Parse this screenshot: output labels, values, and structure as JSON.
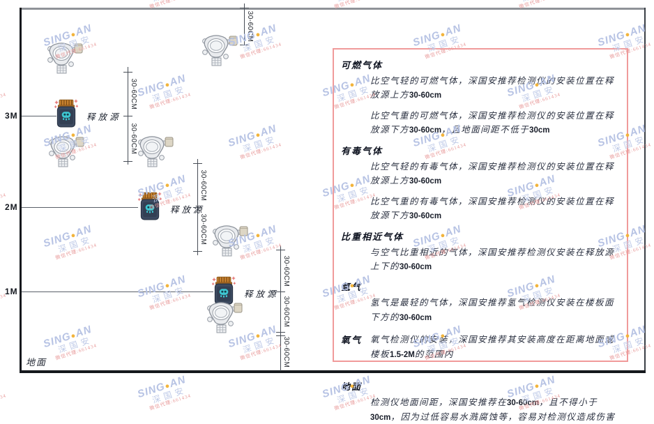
{
  "watermark": {
    "brand_front": "SING",
    "brand_dot": "●",
    "brand_back": "AN",
    "brand_cjk": "深国安",
    "agent_line": "微信代理:661434"
  },
  "diagram": {
    "level_labels": {
      "m3": "3M",
      "m2": "2M",
      "m1": "1M"
    },
    "ground_label": "地面",
    "release_source_label": "释放源",
    "dim_label": "30-60CM"
  },
  "panel": {
    "border_color": "#f09a9a",
    "sections": [
      {
        "heading": "可燃气体",
        "inline": false,
        "gap_before": false,
        "paragraphs": [
          "比空气轻的可燃气体，深国安推荐检测仪的安装位置在释放源上方30-60cm",
          "比空气重的可燃气体，深国安推荐检测仪的安装位置在释放源下方30-60cm，且地面间距不低于30cm"
        ]
      },
      {
        "heading": "有毒气体",
        "inline": false,
        "gap_before": false,
        "paragraphs": [
          "比空气轻的有毒气体，深国安推荐检测仪的安装位置在释放源上方30-60cm",
          "比空气重的有毒气体，深国安推荐检测仪的安装位置在释放源下方30-60cm"
        ]
      },
      {
        "heading": "比重相近气体",
        "inline": false,
        "gap_before": false,
        "paragraphs": [
          "与空气比重相近的气体，深国安推荐检测仪安装在释放源上下的30-60cm"
        ]
      },
      {
        "heading": "氢气",
        "inline": false,
        "gap_before": false,
        "paragraphs": [
          "氢气是最轻的气体，深国安推荐氢气检测仪安装在楼板面下方的30-60cm"
        ]
      },
      {
        "heading": "氧气",
        "inline": true,
        "gap_before": false,
        "paragraphs": [
          "氧气检测仪的安装，深国安推荐其安装高度在距离地面或楼板1.5-2M的范围内"
        ]
      },
      {
        "heading": "地面",
        "inline": false,
        "gap_before": true,
        "paragraphs": [
          "检测仪地面间距，深国安推荐在30-60cm，且不得小于30cm，因为过低容易水溅腐蚀等，容易对检测仪造成伤害"
        ]
      }
    ]
  }
}
